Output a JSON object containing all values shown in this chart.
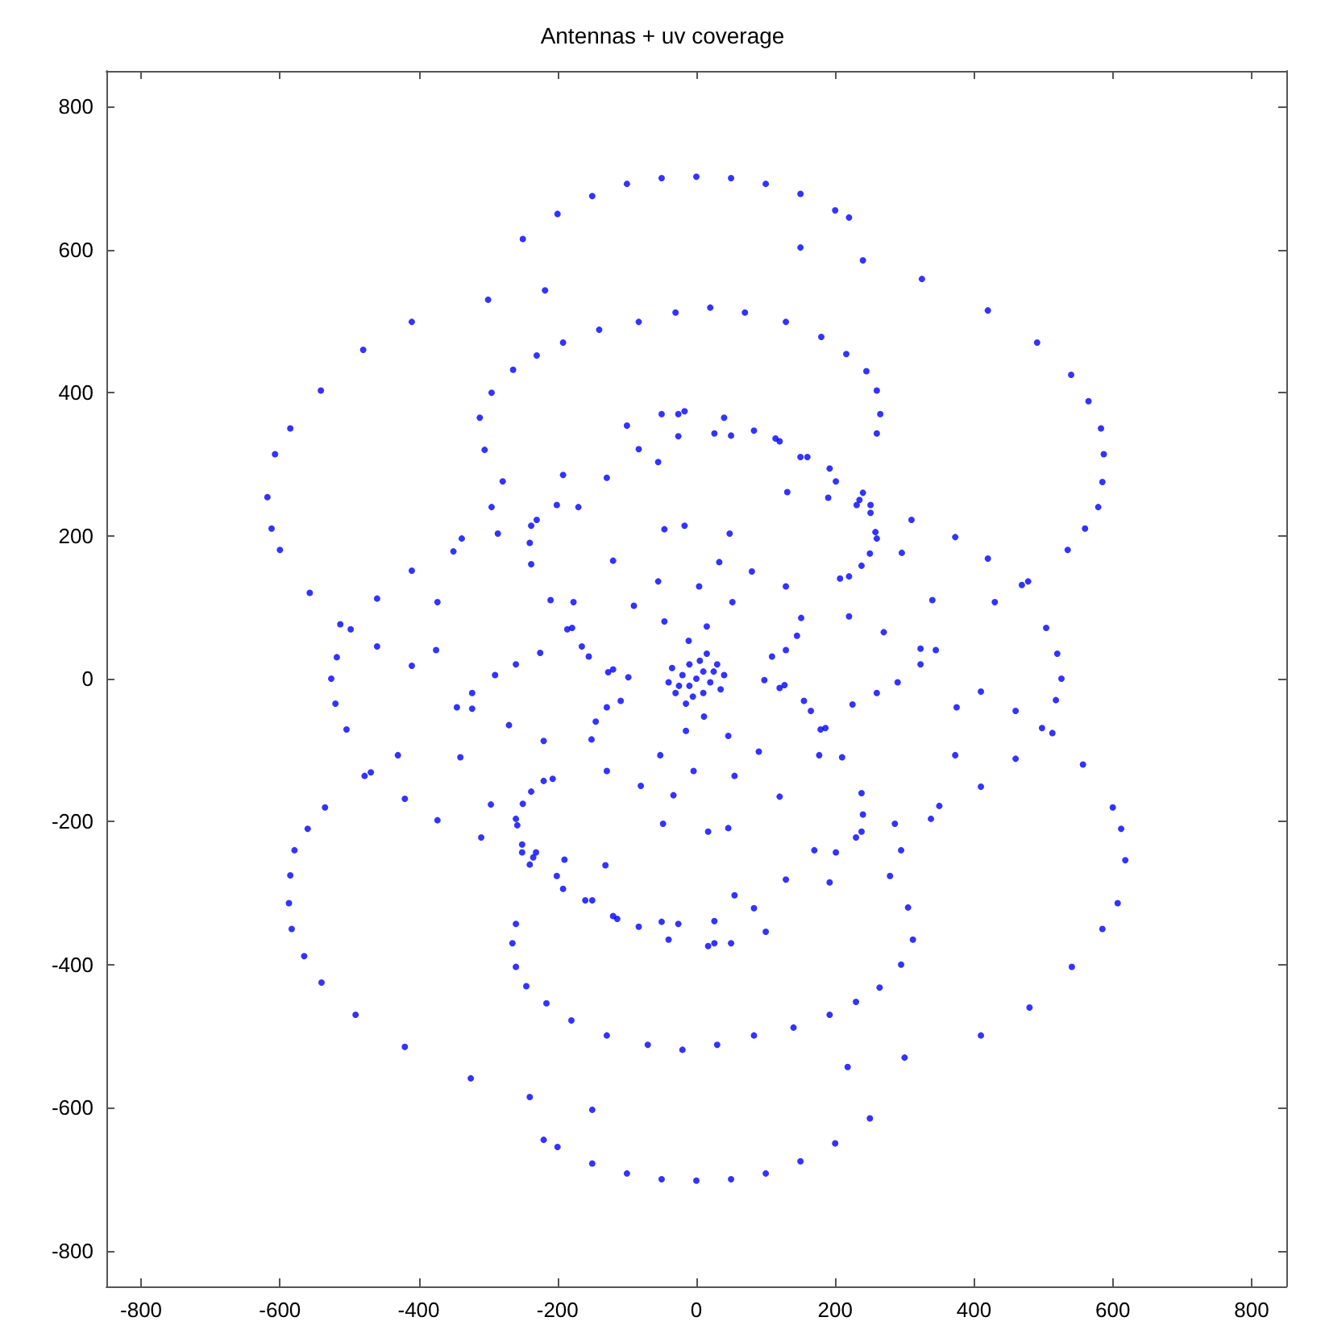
{
  "chart_data": {
    "type": "scatter",
    "title": "Antennas + uv coverage",
    "xlim": [
      -850,
      850
    ],
    "ylim": [
      -850,
      850
    ],
    "xticks": [
      -800,
      -600,
      -400,
      -200,
      0,
      200,
      400,
      600,
      800
    ],
    "yticks": [
      -800,
      -600,
      -400,
      -200,
      0,
      200,
      400,
      600,
      800
    ],
    "grid": false,
    "marker": "circle",
    "series": [
      {
        "color": "#0000ff",
        "x": [
          -250,
          -200,
          -150,
          -100,
          -50,
          0,
          50,
          100,
          150,
          200,
          220
        ],
        "values": [
          615,
          650,
          675,
          692,
          700,
          702,
          700,
          692,
          678,
          655,
          645
        ]
      },
      {
        "color": "#0000ff",
        "x": [
          250,
          200,
          150,
          100,
          50,
          0,
          -50,
          -100,
          -150,
          -200,
          -220
        ],
        "values": [
          -615,
          -650,
          -675,
          -692,
          -700,
          -702,
          -700,
          -692,
          -678,
          -655,
          -645
        ]
      },
      {
        "color": "#0000ff",
        "x": [
          -218,
          -300,
          -410,
          -480,
          -541,
          -585,
          -607,
          -618,
          -612,
          -600,
          -557,
          -513,
          -460,
          -410
        ],
        "values": [
          543,
          530,
          499,
          460,
          403,
          350,
          314,
          254,
          210,
          180,
          120,
          76,
          45,
          18
        ]
      },
      {
        "color": "#0000ff",
        "x": [
          218,
          300,
          410,
          480,
          541,
          585,
          607,
          618,
          612,
          600,
          557,
          513,
          460,
          410
        ],
        "values": [
          -543,
          -530,
          -499,
          -460,
          -403,
          -350,
          -314,
          -254,
          -210,
          -180,
          -120,
          -76,
          -45,
          -18
        ]
      },
      {
        "color": "#0000ff",
        "x": [
          150,
          240,
          325,
          420,
          491,
          540,
          565,
          583,
          587,
          585,
          579,
          560,
          535,
          478,
          430
        ],
        "values": [
          603,
          585,
          559,
          515,
          470,
          425,
          388,
          350,
          314,
          275,
          240,
          210,
          180,
          136,
          107
        ]
      },
      {
        "color": "#0000ff",
        "x": [
          -150,
          -240,
          -325,
          -420,
          -491,
          -540,
          -565,
          -583,
          -587,
          -585,
          -579,
          -560,
          -535,
          -478,
          -430
        ],
        "values": [
          -603,
          -585,
          -559,
          -515,
          -470,
          -425,
          -388,
          -350,
          -314,
          -275,
          -240,
          -210,
          -180,
          -136,
          -107
        ]
      },
      {
        "color": "#0000ff",
        "x": [
          -170,
          -230,
          -286,
          -350,
          -410,
          -460,
          -498,
          -518,
          -526,
          -520,
          -504,
          -469,
          -420,
          -373,
          -310,
          -251,
          -190,
          -131
        ],
        "values": [
          240,
          222,
          203,
          178,
          151,
          112,
          69,
          30,
          0,
          -35,
          -71,
          -131,
          -168,
          -198,
          -222,
          -243,
          -253,
          -261
        ]
      },
      {
        "color": "#0000ff",
        "x": [
          170,
          230,
          286,
          350,
          410,
          460,
          498,
          518,
          526,
          520,
          504,
          469,
          420,
          373,
          310,
          251,
          190,
          131
        ],
        "values": [
          -240,
          -222,
          -203,
          -178,
          -151,
          -112,
          -69,
          -30,
          0,
          35,
          71,
          131,
          168,
          198,
          222,
          243,
          253,
          261
        ]
      },
      {
        "color": "#0000ff",
        "x": [
          -279,
          -305,
          -312,
          -295,
          -264,
          -230,
          -192,
          -140,
          -83,
          -30,
          20,
          70,
          129,
          180,
          216,
          245,
          260,
          265,
          260
        ],
        "values": [
          276,
          320,
          365,
          400,
          432,
          452,
          470,
          488,
          499,
          512,
          519,
          512,
          499,
          478,
          454,
          430,
          403,
          370,
          343
        ]
      },
      {
        "color": "#0000ff",
        "x": [
          279,
          305,
          312,
          295,
          264,
          230,
          192,
          140,
          83,
          30,
          -20,
          -70,
          -129,
          -180,
          -216,
          -245,
          -260,
          -265,
          -260
        ],
        "values": [
          -276,
          -320,
          -365,
          -400,
          -432,
          -452,
          -470,
          -488,
          -499,
          -512,
          -519,
          -512,
          -499,
          -478,
          -454,
          -430,
          -403,
          -370,
          -343
        ]
      },
      {
        "color": "#0000ff",
        "x": [
          -100,
          -50,
          -17,
          40,
          114,
          160,
          201,
          235,
          251,
          260,
          250,
          238,
          207
        ],
        "values": [
          354,
          370,
          374,
          365,
          336,
          310,
          276,
          250,
          232,
          196,
          175,
          158,
          140
        ]
      },
      {
        "color": "#0000ff",
        "x": [
          100,
          50,
          17,
          -40,
          -114,
          -160,
          -201,
          -235,
          -251,
          -260,
          -250,
          -238,
          -207
        ],
        "values": [
          -354,
          -370,
          -374,
          -365,
          -336,
          -310,
          -276,
          -250,
          -232,
          -196,
          -175,
          -158,
          -140
        ]
      },
      {
        "color": "#0000ff",
        "x": [
          26,
          -83,
          -192,
          -295,
          -338,
          -373,
          -375,
          -345,
          -340,
          -296,
          -231,
          -150,
          -83,
          26
        ],
        "values": [
          343,
          321,
          285,
          240,
          196,
          107,
          40,
          -40,
          -110,
          -176,
          -243,
          -310,
          -347,
          -370
        ]
      },
      {
        "color": "#0000ff",
        "x": [
          -26,
          83,
          192,
          295,
          338,
          373,
          375,
          345,
          340,
          296,
          231,
          150,
          83,
          -26
        ],
        "values": [
          -343,
          -321,
          -285,
          -240,
          -196,
          -107,
          -40,
          40,
          110,
          176,
          243,
          310,
          347,
          370
        ]
      },
      {
        "color": "#0000ff",
        "x": [
          48,
          -17,
          -46,
          -120,
          -177,
          -186,
          -155,
          -127
        ],
        "values": [
          203,
          214,
          209,
          165,
          107,
          69,
          31,
          9
        ]
      },
      {
        "color": "#0000ff",
        "x": [
          -48,
          17,
          46,
          120,
          177,
          186,
          155,
          127
        ],
        "values": [
          -203,
          -214,
          -209,
          -165,
          -107,
          -69,
          -31,
          -9
        ]
      },
      {
        "color": "#0000ff",
        "x": [
          33,
          80,
          129,
          151,
          145,
          129,
          109
        ],
        "values": [
          163,
          150,
          129,
          85,
          60,
          40,
          31
        ]
      },
      {
        "color": "#0000ff",
        "x": [
          -33,
          -80,
          -129,
          -151,
          -145,
          -129,
          -109
        ],
        "values": [
          -163,
          -150,
          -129,
          -85,
          -60,
          -40,
          -31
        ]
      },
      {
        "color": "#0000ff",
        "x": [
          220,
          258,
          240,
          192,
          120,
          50,
          -26
        ],
        "values": [
          143,
          205,
          260,
          294,
          332,
          340,
          339
        ]
      },
      {
        "color": "#0000ff",
        "x": [
          -220,
          -258,
          -240,
          -192,
          -120,
          -50,
          26
        ],
        "values": [
          -143,
          -205,
          -260,
          -294,
          -332,
          -340,
          -339
        ]
      },
      {
        "color": "#0000ff",
        "x": [
          -120,
          -165,
          -179,
          -210,
          -238,
          -240,
          -238,
          -201,
          -129,
          -55
        ],
        "values": [
          13,
          45,
          71,
          110,
          160,
          190,
          214,
          243,
          281,
          303
        ]
      },
      {
        "color": "#0000ff",
        "x": [
          120,
          165,
          179,
          210,
          238,
          240,
          238,
          201,
          129,
          55
        ],
        "values": [
          -13,
          -45,
          -71,
          -110,
          -160,
          -190,
          -214,
          -243,
          -281,
          -303
        ]
      },
      {
        "color": "#0000ff",
        "x": [
          -225,
          -260,
          -290,
          -323
        ],
        "values": [
          36,
          20,
          5,
          -20
        ]
      },
      {
        "color": "#0000ff",
        "x": [
          225,
          260,
          290,
          323
        ],
        "values": [
          -36,
          -20,
          -5,
          20
        ]
      },
      {
        "color": "#0000ff",
        "x": [
          -220,
          -270,
          -323
        ],
        "values": [
          -87,
          -65,
          -42
        ]
      },
      {
        "color": "#0000ff",
        "x": [
          220,
          270,
          323
        ],
        "values": [
          87,
          65,
          42
        ]
      },
      {
        "color": "#0000ff",
        "x": [
          -55,
          4,
          -90,
          52,
          -46,
          15,
          -11,
          -98,
          55,
          -4,
          90,
          -52,
          46,
          -15,
          11,
          98
        ],
        "values": [
          136,
          129,
          102,
          107,
          80,
          73,
          53,
          2,
          -136,
          -129,
          -102,
          -107,
          -80,
          -73,
          -53,
          -2
        ]
      },
      {
        "color": "#0000ff",
        "x": [
          0,
          10,
          -10,
          20,
          -20,
          30,
          -30,
          15,
          -15,
          -35,
          35,
          5,
          -5,
          25,
          -25,
          40,
          -40,
          10,
          -10
        ],
        "values": [
          0,
          10,
          -10,
          -5,
          5,
          20,
          -20,
          35,
          -35,
          15,
          -15,
          25,
          -25,
          10,
          -10,
          5,
          -5,
          -20,
          20
        ]
      }
    ]
  }
}
